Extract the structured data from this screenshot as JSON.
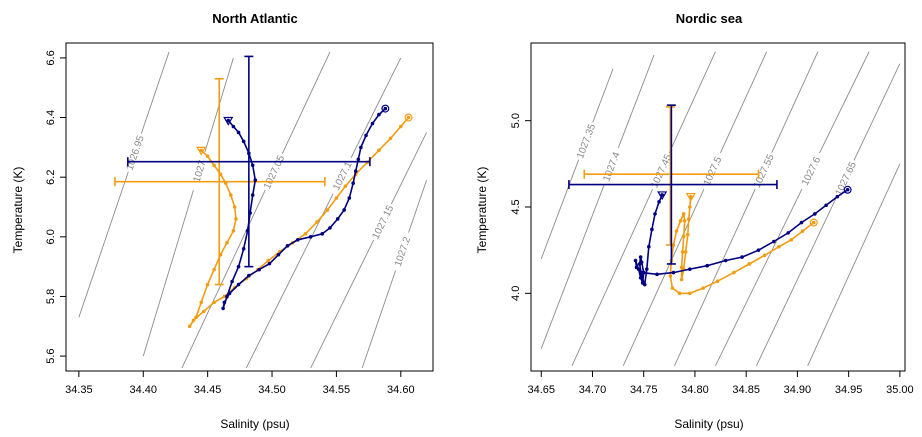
{
  "chart_data": [
    {
      "type": "line",
      "title": "North Atlantic",
      "xlabel": "Salinity (psu)",
      "ylabel": "Temperature (K)",
      "xlim": [
        34.34,
        34.625
      ],
      "ylim": [
        5.55,
        6.65
      ],
      "xticks": [
        "34.35",
        "34.40",
        "34.45",
        "34.50",
        "34.55",
        "34.60"
      ],
      "yticks": [
        "5.6",
        "5.8",
        "6.0",
        "6.2",
        "6.4",
        "6.6"
      ],
      "isopycnals": [
        {
          "label": "1026.95",
          "x1": 34.35,
          "y1": 5.73,
          "x2": 34.42,
          "y2": 6.62
        },
        {
          "label": "1027",
          "x1": 34.4,
          "y1": 5.6,
          "x2": 34.47,
          "y2": 6.6
        },
        {
          "label": "1027.05",
          "x1": 34.43,
          "y1": 5.56,
          "x2": 34.545,
          "y2": 6.62
        },
        {
          "label": "1027.1",
          "x1": 34.48,
          "y1": 5.56,
          "x2": 34.6,
          "y2": 6.6
        },
        {
          "label": "1027.15",
          "x1": 34.53,
          "y1": 5.56,
          "x2": 34.62,
          "y2": 6.35
        },
        {
          "label": "1027.2",
          "x1": 34.57,
          "y1": 5.56,
          "x2": 34.62,
          "y2": 6.19
        }
      ],
      "series": [
        {
          "color": "#f39c12",
          "start_marker": "circle",
          "end_marker": "triangle",
          "points": [
            [
              34.606,
              6.4
            ],
            [
              34.6,
              6.37
            ],
            [
              34.592,
              6.33
            ],
            [
              34.583,
              6.29
            ],
            [
              34.574,
              6.25
            ],
            [
              34.565,
              6.21
            ],
            [
              34.557,
              6.17
            ],
            [
              34.55,
              6.13
            ],
            [
              34.543,
              6.09
            ],
            [
              34.535,
              6.05
            ],
            [
              34.526,
              6.01
            ],
            [
              34.516,
              5.98
            ],
            [
              34.506,
              5.95
            ],
            [
              34.497,
              5.92
            ],
            [
              34.489,
              5.89
            ],
            [
              34.48,
              5.86
            ],
            [
              34.471,
              5.83
            ],
            [
              34.463,
              5.8
            ],
            [
              34.455,
              5.78
            ],
            [
              34.447,
              5.75
            ],
            [
              34.439,
              5.72
            ],
            [
              34.436,
              5.7
            ],
            [
              34.441,
              5.73
            ],
            [
              34.445,
              5.78
            ],
            [
              34.45,
              5.84
            ],
            [
              34.455,
              5.89
            ],
            [
              34.46,
              5.94
            ],
            [
              34.465,
              5.98
            ],
            [
              34.47,
              6.02
            ],
            [
              34.472,
              6.06
            ],
            [
              34.471,
              6.1
            ],
            [
              34.468,
              6.14
            ],
            [
              34.464,
              6.18
            ],
            [
              34.46,
              6.21
            ],
            [
              34.455,
              6.24
            ],
            [
              34.45,
              6.27
            ],
            [
              34.445,
              6.29
            ]
          ],
          "errorbar": {
            "x": 34.459,
            "y": 6.185,
            "x_range": [
              34.378,
              34.541
            ],
            "y_range": [
              5.84,
              6.53
            ]
          }
        },
        {
          "color": "#000080",
          "start_marker": "circle",
          "end_marker": "triangle",
          "points": [
            [
              34.588,
              6.43
            ],
            [
              34.583,
              6.41
            ],
            [
              34.578,
              6.38
            ],
            [
              34.573,
              6.34
            ],
            [
              34.569,
              6.3
            ],
            [
              34.567,
              6.26
            ],
            [
              34.565,
              6.22
            ],
            [
              34.563,
              6.18
            ],
            [
              34.56,
              6.13
            ],
            [
              34.556,
              6.09
            ],
            [
              34.551,
              6.06
            ],
            [
              34.545,
              6.03
            ],
            [
              34.539,
              6.01
            ],
            [
              34.53,
              6.0
            ],
            [
              34.52,
              5.99
            ],
            [
              34.512,
              5.97
            ],
            [
              34.505,
              5.94
            ],
            [
              34.498,
              5.91
            ],
            [
              34.49,
              5.89
            ],
            [
              34.482,
              5.87
            ],
            [
              34.474,
              5.84
            ],
            [
              34.467,
              5.81
            ],
            [
              34.463,
              5.78
            ],
            [
              34.462,
              5.76
            ],
            [
              34.465,
              5.8
            ],
            [
              34.469,
              5.85
            ],
            [
              34.474,
              5.9
            ],
            [
              34.478,
              5.96
            ],
            [
              34.481,
              6.02
            ],
            [
              34.483,
              6.08
            ],
            [
              34.485,
              6.14
            ],
            [
              34.487,
              6.19
            ],
            [
              34.485,
              6.24
            ],
            [
              34.482,
              6.28
            ],
            [
              34.478,
              6.32
            ],
            [
              34.474,
              6.35
            ],
            [
              34.47,
              6.37
            ],
            [
              34.466,
              6.39
            ]
          ],
          "errorbar": {
            "x": 34.482,
            "y": 6.252,
            "x_range": [
              34.388,
              34.576
            ],
            "y_range": [
              5.9,
              6.605
            ]
          }
        }
      ]
    },
    {
      "type": "line",
      "title": "Nordic sea",
      "xlabel": "Salinity (psu)",
      "ylabel": "Temperature (K)",
      "xlim": [
        34.64,
        35.005
      ],
      "ylim": [
        3.55,
        5.45
      ],
      "xticks": [
        "34.65",
        "34.70",
        "34.75",
        "34.80",
        "34.85",
        "34.90",
        "34.95",
        "35.00"
      ],
      "yticks": [
        "4.0",
        "4.5",
        "5.0"
      ],
      "isopycnals": [
        {
          "label": "1027.35",
          "x1": 34.65,
          "y1": 4.2,
          "x2": 34.72,
          "y2": 5.3
        },
        {
          "label": "1027.4",
          "x1": 34.65,
          "y1": 3.68,
          "x2": 34.76,
          "y2": 5.38
        },
        {
          "label": "1027.45",
          "x1": 34.68,
          "y1": 3.58,
          "x2": 34.82,
          "y2": 5.4
        },
        {
          "label": "1027.5",
          "x1": 34.73,
          "y1": 3.58,
          "x2": 34.87,
          "y2": 5.4
        },
        {
          "label": "1027.55",
          "x1": 34.78,
          "y1": 3.58,
          "x2": 34.92,
          "y2": 5.4
        },
        {
          "label": "1027.6",
          "x1": 34.82,
          "y1": 3.58,
          "x2": 34.97,
          "y2": 5.4
        },
        {
          "label": "1027.65",
          "x1": 34.86,
          "y1": 3.58,
          "x2": 35.0,
          "y2": 5.33
        },
        {
          "label": "",
          "x1": 34.91,
          "y1": 3.58,
          "x2": 35.0,
          "y2": 4.75
        }
      ],
      "series": [
        {
          "color": "#f39c12",
          "start_marker": "circle",
          "end_marker": "triangle",
          "points": [
            [
              34.916,
              4.41
            ],
            [
              34.905,
              4.36
            ],
            [
              34.894,
              4.31
            ],
            [
              34.882,
              4.27
            ],
            [
              34.868,
              4.22
            ],
            [
              34.853,
              4.17
            ],
            [
              34.838,
              4.12
            ],
            [
              34.822,
              4.07
            ],
            [
              34.808,
              4.03
            ],
            [
              34.795,
              4.0
            ],
            [
              34.785,
              4.0
            ],
            [
              34.778,
              4.03
            ],
            [
              34.776,
              4.1
            ],
            [
              34.777,
              4.19
            ],
            [
              34.779,
              4.28
            ],
            [
              34.782,
              4.36
            ],
            [
              34.786,
              4.42
            ],
            [
              34.789,
              4.46
            ],
            [
              34.79,
              4.42
            ],
            [
              34.789,
              4.33
            ],
            [
              34.788,
              4.24
            ],
            [
              34.787,
              4.15
            ],
            [
              34.787,
              4.08
            ],
            [
              34.789,
              4.14
            ],
            [
              34.791,
              4.24
            ],
            [
              34.793,
              4.34
            ],
            [
              34.794,
              4.43
            ],
            [
              34.795,
              4.5
            ],
            [
              34.796,
              4.56
            ]
          ],
          "errorbar": {
            "x": 34.776,
            "y": 4.69,
            "x_range": [
              34.692,
              34.862
            ],
            "y_range": [
              4.28,
              5.08
            ]
          }
        },
        {
          "color": "#000080",
          "start_marker": "circle",
          "end_marker": "triangle",
          "points": [
            [
              34.949,
              4.6
            ],
            [
              34.939,
              4.56
            ],
            [
              34.928,
              4.51
            ],
            [
              34.917,
              4.46
            ],
            [
              34.904,
              4.41
            ],
            [
              34.891,
              4.35
            ],
            [
              34.877,
              4.3
            ],
            [
              34.862,
              4.25
            ],
            [
              34.846,
              4.21
            ],
            [
              34.83,
              4.19
            ],
            [
              34.812,
              4.16
            ],
            [
              34.795,
              4.14
            ],
            [
              34.779,
              4.12
            ],
            [
              34.763,
              4.11
            ],
            [
              34.748,
              4.12
            ],
            [
              34.743,
              4.15
            ],
            [
              34.742,
              4.19
            ],
            [
              34.745,
              4.14
            ],
            [
              34.747,
              4.09
            ],
            [
              34.749,
              4.06
            ],
            [
              34.75,
              4.12
            ],
            [
              34.748,
              4.18
            ],
            [
              34.747,
              4.21
            ],
            [
              34.746,
              4.17
            ],
            [
              34.748,
              4.1
            ],
            [
              34.751,
              4.05
            ],
            [
              34.753,
              4.14
            ],
            [
              34.755,
              4.27
            ],
            [
              34.758,
              4.37
            ],
            [
              34.761,
              4.46
            ],
            [
              34.765,
              4.53
            ],
            [
              34.768,
              4.57
            ]
          ],
          "errorbar": {
            "x": 34.777,
            "y": 4.63,
            "x_range": [
              34.677,
              34.88
            ],
            "y_range": [
              4.17,
              5.09
            ]
          }
        }
      ]
    }
  ]
}
